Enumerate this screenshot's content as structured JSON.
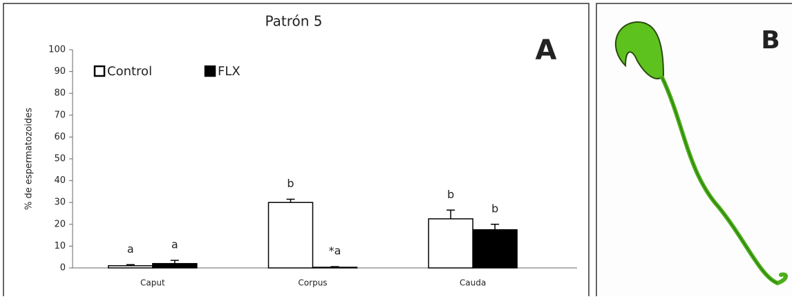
{
  "chart_data": {
    "type": "bar",
    "title": "Patrón 5",
    "panel_label": "A",
    "y_label": "% de espermatozoides",
    "categories": [
      "Caput",
      "Corpus",
      "Cauda"
    ],
    "series": [
      {
        "name": "Control",
        "color": "#ffffff",
        "values": [
          1,
          30,
          22.5
        ],
        "errors": [
          0.5,
          1.5,
          4
        ],
        "letters": [
          "a",
          "b",
          "b"
        ]
      },
      {
        "name": "FLX",
        "color": "#000000",
        "values": [
          2,
          0.3,
          17.5
        ],
        "errors": [
          1.5,
          0.3,
          2.5
        ],
        "letters": [
          "a",
          "*a",
          "b"
        ]
      }
    ],
    "ylim": [
      0,
      100
    ],
    "yticks": [
      0,
      10,
      20,
      30,
      40,
      50,
      60,
      70,
      80,
      90,
      100
    ],
    "grid": false
  },
  "image_panel": {
    "label": "B"
  }
}
